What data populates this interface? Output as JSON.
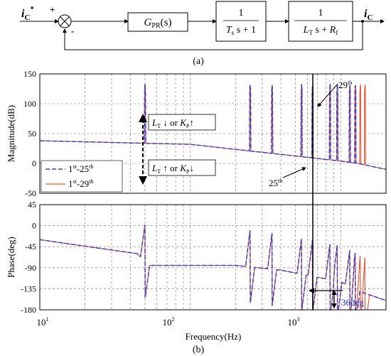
{
  "block_diagram": {
    "caption": "(a)",
    "input_label": "i",
    "input_sub": "C",
    "input_sup": "*",
    "output_label": "i",
    "output_sub": "C",
    "plus_sign": "+",
    "minus_sign": "-",
    "block1": {
      "main": "G",
      "sub": "PR",
      "tail": "(s)"
    },
    "block2": {
      "num": "1",
      "den_main": "T",
      "den_sub": "s",
      "den_tail": " s + 1"
    },
    "block3": {
      "num": "1",
      "den_main1": "L",
      "den_sub1": "T",
      "den_mid": " s + ",
      "den_main2": "R",
      "den_sub2": "f"
    }
  },
  "chart_data": [
    {
      "type": "line",
      "name": "magnitude",
      "ylabel": "Magnitude(dB)",
      "xscale": "log",
      "xlim": [
        10,
        2000
      ],
      "ylim": [
        -50,
        150
      ],
      "yticks": [
        -50,
        0,
        50,
        100,
        150
      ],
      "grid": true,
      "legend_position": "lower-left",
      "series": [
        {
          "name_main": "1",
          "name_sup": "st",
          "name_mid": "-25",
          "name_sup2": "th",
          "color": "#4040c0",
          "dash": true
        },
        {
          "name_main": "1",
          "name_sup": "st",
          "name_mid": "-29",
          "name_sup2": "th",
          "color": "#e05030",
          "dash": false
        }
      ],
      "baseline": {
        "x": [
          10,
          100,
          1000,
          1300,
          2000
        ],
        "y": [
          38,
          32,
          4,
          0,
          -10
        ]
      },
      "resonances_25": [
        50,
        250,
        350,
        550,
        650,
        850,
        950,
        1150,
        1250
      ],
      "resonances_29": [
        1350,
        1450
      ],
      "annotations": {
        "up_text_main": "L",
        "up_text_sub": "T",
        "up_text_arrow": " ↓ or ",
        "up_text_k": "K",
        "up_text_ksub": "P",
        "up_text_karrow": "↑",
        "down_text_main": "L",
        "down_text_sub": "T",
        "down_text_arrow": " ↑ or ",
        "down_text_k": "K",
        "down_text_ksub": "P",
        "down_text_karrow": "↓",
        "label_29_main": "29",
        "label_29_sup": "th",
        "label_25_main": "25",
        "label_25_sup": "th"
      }
    },
    {
      "type": "line",
      "name": "phase",
      "ylabel": "Phase(deg)",
      "xlabel": "Frequency(Hz)",
      "xscale": "log",
      "xlim": [
        10,
        2000
      ],
      "ylim": [
        -180,
        45
      ],
      "yticks": [
        45,
        0,
        -45,
        -90,
        -135,
        -180
      ],
      "xticks": [
        10,
        100,
        1000
      ],
      "grid": true,
      "annotations": {
        "margin_label": "36deg"
      }
    }
  ],
  "xtick_labels": [
    {
      "base": "10",
      "exp": "1"
    },
    {
      "base": "10",
      "exp": "2"
    },
    {
      "base": "10",
      "exp": "3"
    }
  ],
  "caption_b": "(b)"
}
